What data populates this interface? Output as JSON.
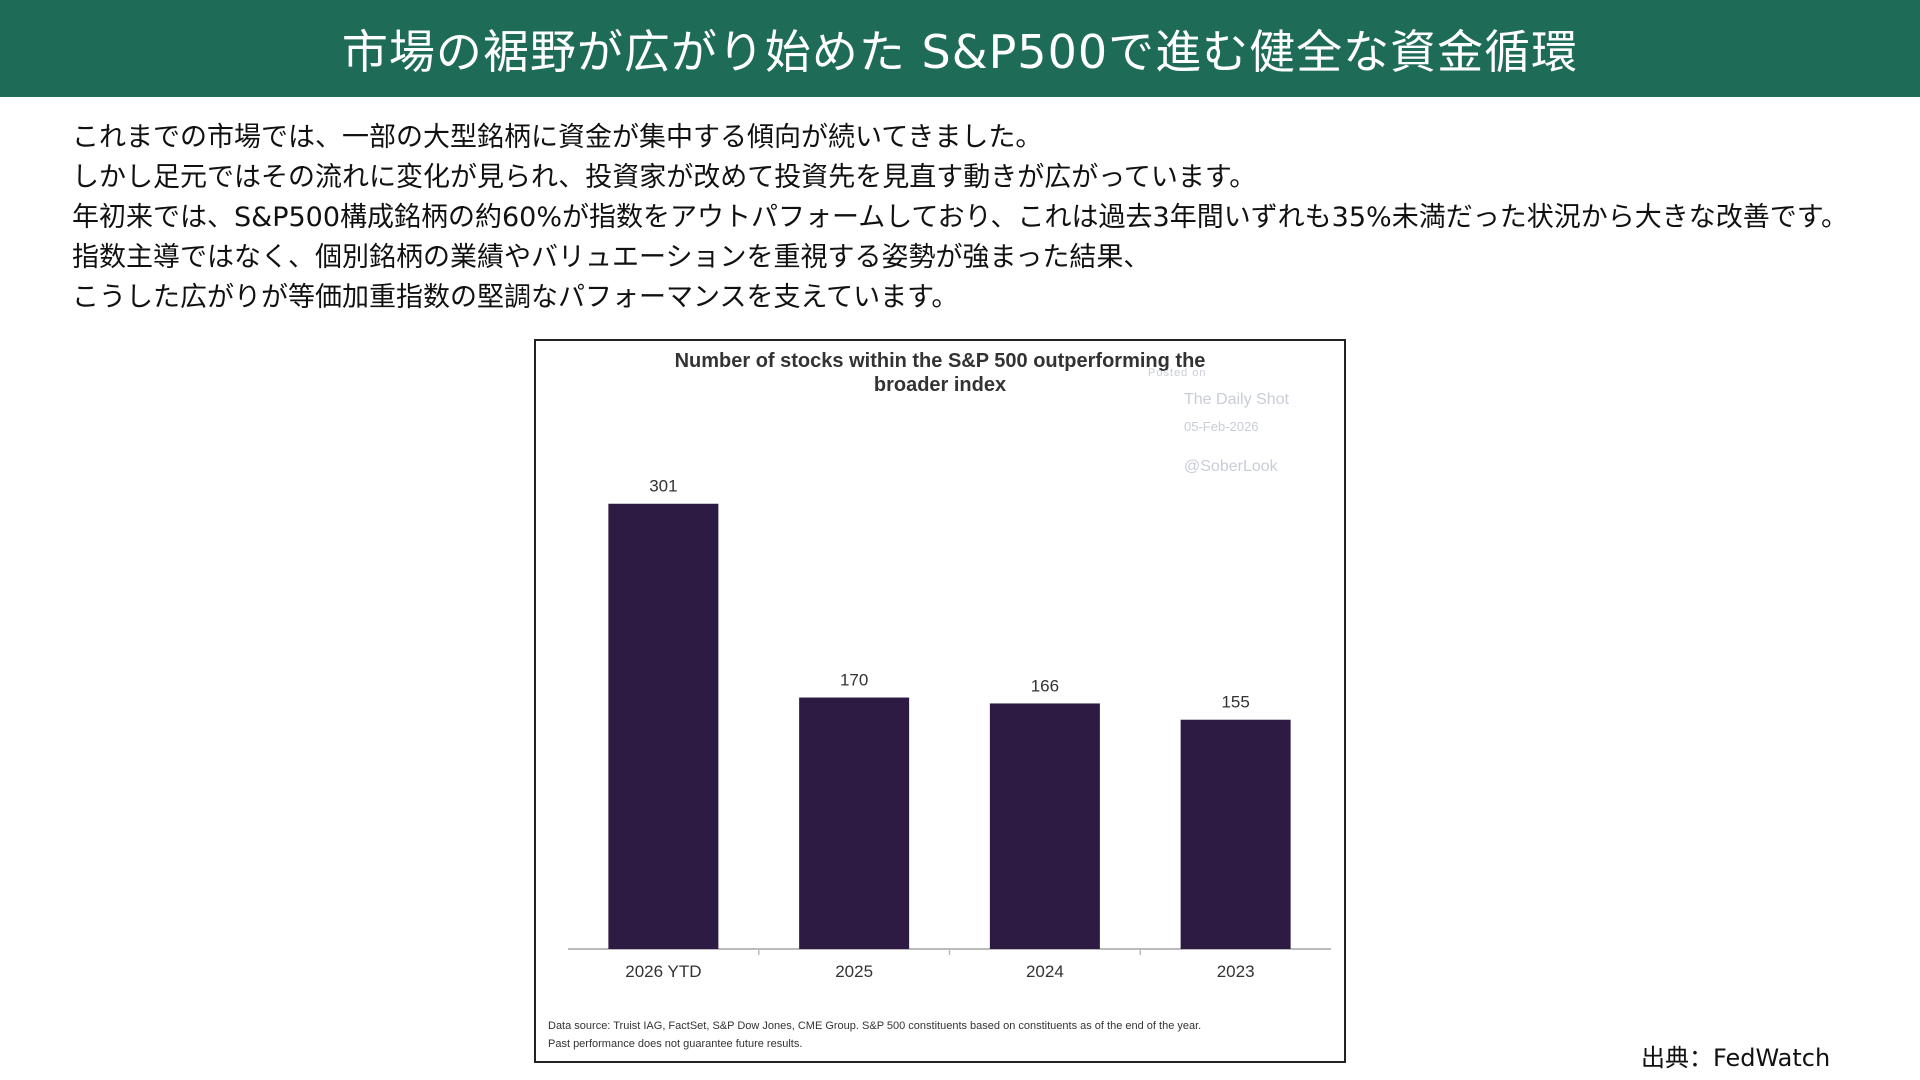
{
  "page": {
    "title": "市場の裾野が広がり始めた S&P500で進む健全な資金循環",
    "paragraphs": [
      "これまでの市場では、一部の大型銘柄に資金が集中する傾向が続いてきました。",
      "しかし足元ではその流れに変化が見られ、投資家が改めて投資先を見直す動きが広がっています。",
      "年初来では、S&P500構成銘柄の約60%が指数をアウトパフォームしており、これは過去3年間いずれも35%未満だった状況から大きな改善です。",
      "指数主導ではなく、個別銘柄の業績やバリュエーションを重視する姿勢が強まった結果、",
      "こうした広がりが等価加重指数の堅調なパフォーマンスを支えています。"
    ],
    "credit": "出典：FedWatch"
  },
  "chart_data": {
    "type": "bar",
    "title": "Number of stocks within the S&P 500 outperforming the broader index",
    "title_lines": [
      "Number of stocks within the S&P 500 outperforming the",
      "broader index"
    ],
    "categories": [
      "2026 YTD",
      "2025",
      "2024",
      "2023"
    ],
    "values": [
      301,
      170,
      166,
      155
    ],
    "data_labels": [
      "301",
      "170",
      "166",
      "155"
    ],
    "ylim": [
      0,
      320
    ],
    "grid": false,
    "bar_color": "#2d1b44",
    "watermark": {
      "posted": "Posted on",
      "source": "The Daily Shot",
      "date": "05-Feb-2026",
      "handle": "@SoberLook"
    },
    "notes": [
      "Data source: Truist IAG, FactSet, S&P Dow Jones, CME Group. S&P 500 constituents based on constituents as of the end of the year.",
      "Past performance does not guarantee future results."
    ]
  }
}
